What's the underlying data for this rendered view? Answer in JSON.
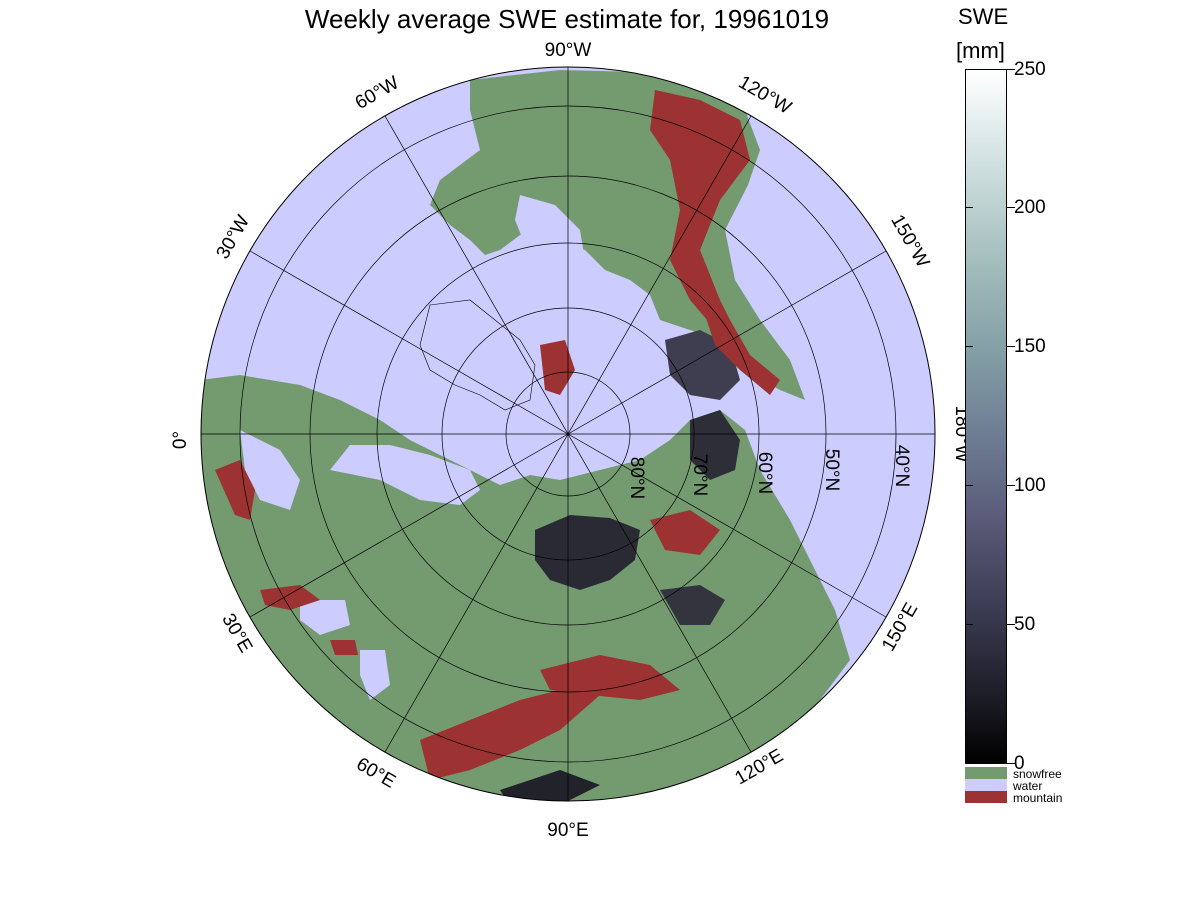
{
  "title": "Weekly average SWE estimate for, 19961019",
  "colorbar": {
    "title": "SWE",
    "unit": "[mm]",
    "ticks": [
      "0",
      "50",
      "100",
      "150",
      "200",
      "250"
    ],
    "categories": [
      {
        "label": "snowfree",
        "color": "#749a70"
      },
      {
        "label": "water",
        "color": "#ccccff"
      },
      {
        "label": "mountain",
        "color": "#9c3232"
      }
    ]
  },
  "map": {
    "projection": "north polar stereographic",
    "ocean_color": "#ccccff",
    "land_color": "#749a70",
    "mountain_color": "#9c3232",
    "longitude_labels": [
      "0°",
      "30°W",
      "60°W",
      "90°W",
      "120°W",
      "150°W",
      "180°W",
      "150°E",
      "120°E",
      "90°E",
      "60°E",
      "30°E"
    ],
    "latitude_labels": [
      "80°N",
      "70°N",
      "60°N",
      "50°N",
      "40°N"
    ]
  }
}
